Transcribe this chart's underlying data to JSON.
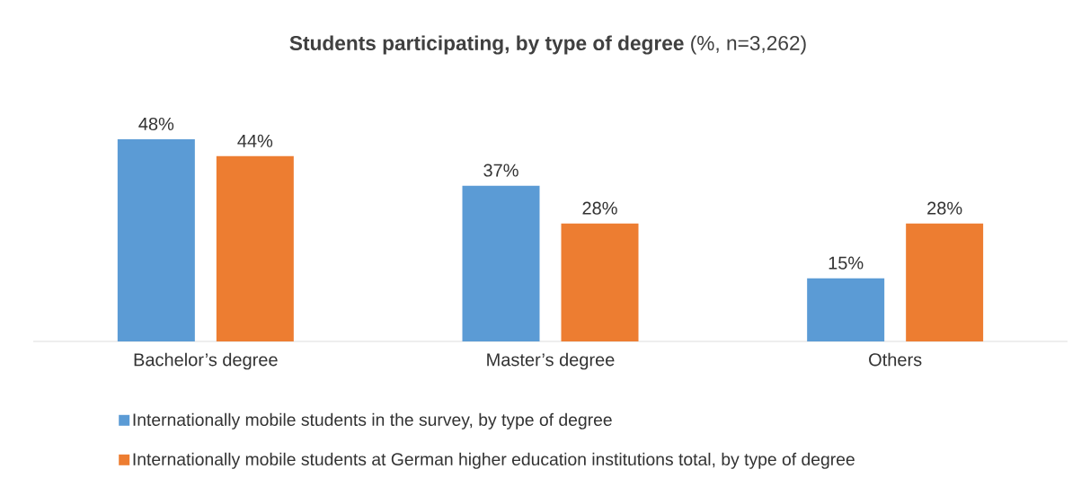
{
  "chart_data": {
    "type": "bar",
    "title": "**Students participating, by type of degree** (%, n=3,262)",
    "categories": [
      "Bachelor’s degree",
      "Master’s degree",
      "Others"
    ],
    "series": [
      {
        "name": "Internationally mobile students in the survey, by type of degree",
        "color": "#5b9bd5",
        "values": [
          48,
          37,
          15
        ],
        "value_labels": [
          "48%",
          "37%",
          "15%"
        ]
      },
      {
        "name": "Internationally mobile students at German higher education institutions total, by type of degree",
        "color": "#ed7d31",
        "values": [
          44,
          28,
          28
        ],
        "value_labels": [
          "44%",
          "28%",
          "28%"
        ]
      }
    ],
    "legend": "bottom"
  }
}
